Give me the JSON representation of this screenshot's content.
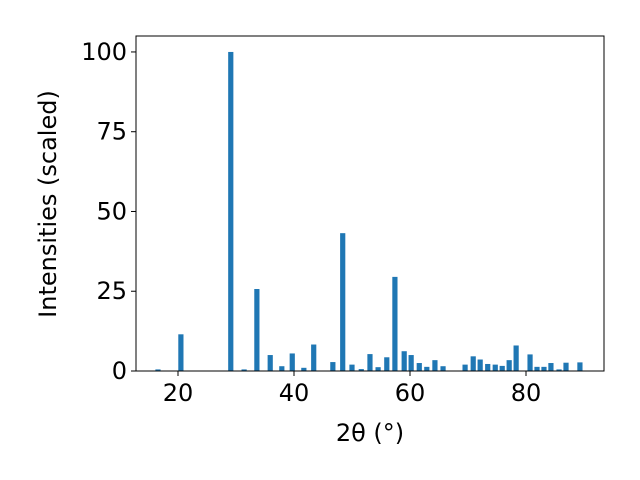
{
  "chart_data": {
    "type": "bar",
    "x": [
      16.55,
      20.5,
      29.1,
      31.4,
      33.6,
      35.9,
      37.9,
      39.7,
      41.7,
      43.4,
      46.7,
      48.4,
      50.0,
      51.6,
      53.1,
      54.5,
      56.0,
      57.4,
      59.0,
      60.2,
      61.6,
      62.9,
      64.3,
      65.7,
      69.5,
      70.9,
      72.1,
      73.4,
      74.7,
      75.9,
      77.1,
      78.3,
      80.7,
      81.9,
      83.1,
      84.3,
      85.7,
      86.9,
      89.3
    ],
    "values": [
      0.5,
      11.5,
      100,
      0.5,
      25.7,
      5,
      1.5,
      5.5,
      1,
      8.3,
      2.8,
      43.2,
      2,
      0.6,
      5.3,
      1.2,
      4.3,
      29.5,
      6.2,
      5,
      2.5,
      1.3,
      3.4,
      1.5,
      2,
      4.6,
      3.6,
      2.2,
      2,
      1.6,
      3.4,
      8,
      5.2,
      1.3,
      1.3,
      2.5,
      0.5,
      2.6,
      2.7
    ],
    "color": "#1f77b4",
    "xlabel": "2θ (°)",
    "ylabel": "Intensities (scaled)",
    "xlim": [
      12.76,
      93.45
    ],
    "xticks": [
      20,
      40,
      60,
      80
    ],
    "ylim": [
      0,
      105
    ],
    "yticks": [
      0,
      25,
      50,
      75,
      100
    ]
  }
}
